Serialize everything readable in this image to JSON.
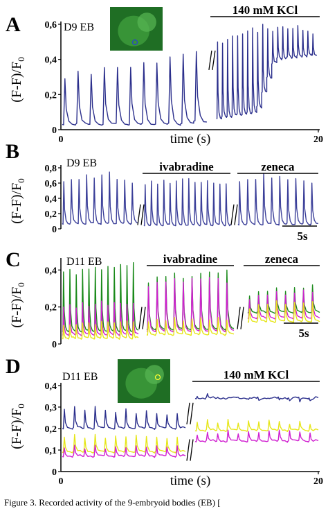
{
  "chart_data": [
    {
      "panel": "A",
      "type": "line",
      "experiment": "D9 EB",
      "ylabel": "(F-F)/F",
      "ylabel_sub": "0",
      "xlabel": "time (s)",
      "x_ticks": [
        "0",
        "20"
      ],
      "xlim": [
        0,
        20
      ],
      "ylim": [
        0,
        0.6
      ],
      "y_ticks": [
        "0",
        "0,2",
        "0,4",
        "0,6"
      ],
      "annotation": "140 mM KCl",
      "has_inset_image": true,
      "series": [
        {
          "color": "#2b2f8c",
          "x_span": [
            0,
            20
          ],
          "baseline": [
            0.03,
            0.03,
            0.1,
            0.4,
            0.43
          ],
          "baseline_at": [
            0,
            0.45,
            0.75,
            0.82,
            1.0
          ],
          "peaks": [
            0.29,
            0.33,
            0.32,
            0.35,
            0.36,
            0.36,
            0.38,
            0.38,
            0.41,
            0.43,
            0.44,
            0.5,
            0.49,
            0.52,
            0.53,
            0.54,
            0.55,
            0.56,
            0.58,
            0.55,
            0.6,
            0.57,
            0.56,
            0.58,
            0.59,
            0.57,
            0.58,
            0.59,
            0.57,
            0.56,
            0.55
          ],
          "break_at": 0.58
        }
      ]
    },
    {
      "panel": "B",
      "type": "line",
      "experiment": "D9 EB",
      "ylabel": "(F-F)/F",
      "ylabel_sub": "0",
      "ylim": [
        0,
        0.8
      ],
      "y_ticks": [
        "0",
        "0,2",
        "0,4",
        "0,6",
        "0,8"
      ],
      "conditions": [
        "ivabradine",
        "zeneca"
      ],
      "scale_bar": "5s",
      "series": [
        {
          "color": "#3b3f99",
          "segments": [
            {
              "baseline": 0.07,
              "peaks": [
                0.62,
                0.64,
                0.66,
                0.7,
                0.68,
                0.72,
                0.74,
                0.65,
                0.63,
                0.6
              ]
            },
            {
              "baseline": 0.05,
              "peaks": [
                0.58,
                0.62,
                0.6,
                0.63,
                0.61,
                0.64,
                0.65,
                0.66,
                0.6,
                0.61,
                0.62,
                0.6,
                0.58,
                0.6
              ]
            },
            {
              "baseline": 0.06,
              "peaks": [
                0.62,
                0.64,
                0.66,
                0.72,
                0.68,
                0.7,
                0.64,
                0.66,
                0.62,
                0.6
              ]
            }
          ]
        }
      ]
    },
    {
      "panel": "C",
      "type": "line",
      "experiment": "D11 EB",
      "ylabel": "(F-F)/F",
      "ylabel_sub": "0",
      "ylim": [
        0,
        0.45
      ],
      "y_ticks": [
        "0",
        "0,2",
        "0,4"
      ],
      "conditions": [
        "ivabradine",
        "zeneca"
      ],
      "scale_bar": "5s",
      "series": [
        {
          "color": "#1a8a1a",
          "segments": [
            {
              "baseline": 0.07,
              "peaks": [
                0.39,
                0.4,
                0.38,
                0.4,
                0.41,
                0.42,
                0.4,
                0.42,
                0.41,
                0.43,
                0.42,
                0.44
              ]
            },
            {
              "baseline": 0.08,
              "peaks": [
                0.33,
                0.36,
                0.37,
                0.38,
                0.36,
                0.37,
                0.38,
                0.39,
                0.38,
                0.4
              ]
            },
            {
              "baseline": 0.17,
              "peaks": [
                0.26,
                0.28,
                0.29,
                0.3,
                0.29,
                0.31,
                0.3,
                0.32
              ]
            }
          ]
        },
        {
          "color": "#d01fd0",
          "segments": [
            {
              "baseline": 0.05,
              "peaks": [
                0.2,
                0.21,
                0.2,
                0.22,
                0.21,
                0.22,
                0.23,
                0.21,
                0.22,
                0.22,
                0.21,
                0.22
              ]
            },
            {
              "baseline": 0.07,
              "peaks": [
                0.31,
                0.33,
                0.34,
                0.35,
                0.34,
                0.36,
                0.35,
                0.36,
                0.35,
                0.33
              ]
            },
            {
              "baseline": 0.14,
              "peaks": [
                0.24,
                0.26,
                0.27,
                0.28,
                0.27,
                0.28,
                0.29,
                0.28
              ]
            }
          ]
        },
        {
          "color": "#e6e619",
          "segments": [
            {
              "baseline": 0.03,
              "peaks": [
                0.1,
                0.1,
                0.11,
                0.11,
                0.12,
                0.11,
                0.12,
                0.12,
                0.11,
                0.12,
                0.12,
                0.12
              ]
            },
            {
              "baseline": 0.05,
              "peaks": [
                0.12,
                0.13,
                0.13,
                0.14,
                0.13,
                0.14,
                0.14,
                0.13,
                0.14,
                0.13
              ]
            },
            {
              "baseline": 0.12,
              "peaks": [
                0.19,
                0.21,
                0.22,
                0.23,
                0.22,
                0.23,
                0.22,
                0.23
              ]
            }
          ]
        }
      ]
    },
    {
      "panel": "D",
      "type": "line",
      "experiment": "D11 EB",
      "ylabel": "(F-F)/F",
      "ylabel_sub": "0",
      "xlabel": "time (s)",
      "x_ticks": [
        "0",
        "20"
      ],
      "xlim": [
        0,
        20
      ],
      "ylim": [
        0,
        0.4
      ],
      "y_ticks": [
        "0",
        "0,1",
        "0,2",
        "0,3",
        "0,4"
      ],
      "annotation": "140 mM KCl",
      "has_inset_image": true,
      "series": [
        {
          "color": "#2b2f8c",
          "segments": [
            {
              "baseline": 0.2,
              "peaks": [
                0.29,
                0.3,
                0.29,
                0.3,
                0.29,
                0.28,
                0.29,
                0.27,
                0.28,
                0.27,
                0.26,
                0.27
              ]
            },
            {
              "baseline": 0.34,
              "peaks": [
                0.35,
                0.36,
                0.35,
                0.34,
                0.35,
                0.34,
                0.33,
                0.34,
                0.33,
                0.33,
                0.32,
                0.33
              ]
            }
          ]
        },
        {
          "color": "#e6e619",
          "segments": [
            {
              "baseline": 0.09,
              "peaks": [
                0.16,
                0.17,
                0.16,
                0.17,
                0.16,
                0.17,
                0.16,
                0.17,
                0.16,
                0.16,
                0.15,
                0.16
              ]
            },
            {
              "baseline": 0.19,
              "peaks": [
                0.23,
                0.24,
                0.23,
                0.24,
                0.23,
                0.24,
                0.23,
                0.24,
                0.23,
                0.22,
                0.23,
                0.22
              ]
            }
          ]
        },
        {
          "color": "#d01fd0",
          "segments": [
            {
              "baseline": 0.07,
              "peaks": [
                0.11,
                0.12,
                0.11,
                0.12,
                0.11,
                0.12,
                0.11,
                0.12,
                0.11,
                0.12,
                0.11,
                0.12
              ]
            },
            {
              "baseline": 0.14,
              "peaks": [
                0.17,
                0.18,
                0.18,
                0.19,
                0.18,
                0.19,
                0.18,
                0.19,
                0.19,
                0.19,
                0.18,
                0.18
              ]
            }
          ]
        }
      ]
    }
  ],
  "caption_fragment": "Figure 3. Recorded activity of the 9-embryoid bodies (EB) ["
}
